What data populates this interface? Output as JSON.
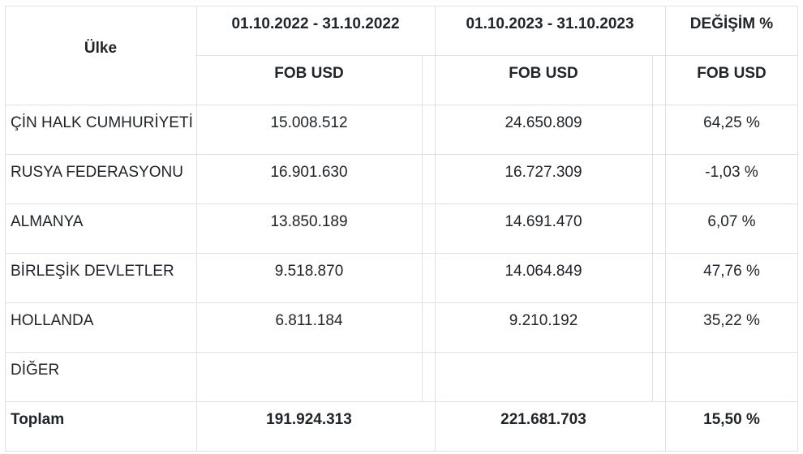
{
  "header": {
    "country_label": "Ülke",
    "period_2022": "01.10.2022 - 31.10.2022",
    "period_2023": "01.10.2023 - 31.10.2023",
    "change_label": "DEĞİŞİM %",
    "unit_2022": "FOB USD",
    "unit_2023": "FOB USD",
    "unit_change": "FOB USD"
  },
  "rows": [
    {
      "country": "ÇİN HALK CUMHURİYETİ",
      "v2022": "15.008.512",
      "v2023": "24.650.809",
      "change": "64,25 %"
    },
    {
      "country": "RUSYA FEDERASYONU",
      "v2022": "16.901.630",
      "v2023": "16.727.309",
      "change": "-1,03 %"
    },
    {
      "country": "ALMANYA",
      "v2022": "13.850.189",
      "v2023": "14.691.470",
      "change": "6,07 %"
    },
    {
      "country": "BİRLEŞİK DEVLETLER",
      "v2022": "9.518.870",
      "v2023": "14.064.849",
      "change": "47,76 %"
    },
    {
      "country": "HOLLANDA",
      "v2022": "6.811.184",
      "v2023": "9.210.192",
      "change": "35,22 %"
    },
    {
      "country": "DİĞER",
      "v2022": "",
      "v2023": "",
      "change": ""
    }
  ],
  "total": {
    "label": "Toplam",
    "v2022": "191.924.313",
    "v2023": "221.681.703",
    "change": "15,50 %"
  }
}
